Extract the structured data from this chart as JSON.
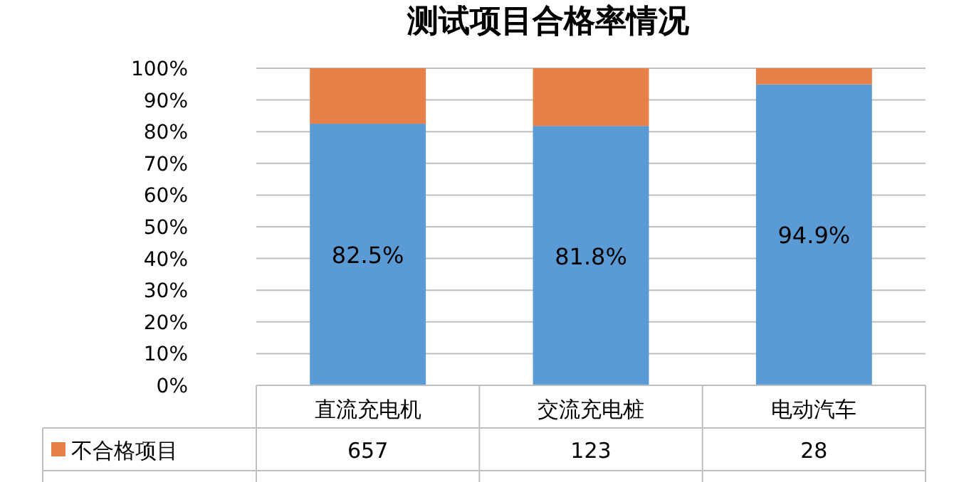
{
  "chart_data": {
    "type": "bar",
    "stacked": true,
    "title": "测试项目合格率情况",
    "categories": [
      "直流充电机",
      "交流充电桩",
      "电动汽车"
    ],
    "ylim": [
      0,
      100
    ],
    "yticks": [
      {
        "value": 0,
        "label": "0%"
      },
      {
        "value": 10,
        "label": "10%"
      },
      {
        "value": 20,
        "label": "20%"
      },
      {
        "value": 30,
        "label": "30%"
      },
      {
        "value": 40,
        "label": "40%"
      },
      {
        "value": 50,
        "label": "50%"
      },
      {
        "value": 60,
        "label": "60%"
      },
      {
        "value": 70,
        "label": "70%"
      },
      {
        "value": 80,
        "label": "80%"
      },
      {
        "value": 90,
        "label": "90%"
      },
      {
        "value": 100,
        "label": "100%"
      }
    ],
    "grid": "y",
    "series": [
      {
        "color": "#5b9bd5",
        "values": [
          82.5,
          81.8,
          94.9
        ],
        "value_labels": [
          "82.5%",
          "81.8%",
          "94.9%"
        ]
      },
      {
        "name": "不合格项目",
        "color": "#e8804a",
        "values": [
          17.5,
          18.2,
          5.1
        ]
      }
    ],
    "annotations": [
      "657",
      "123",
      "28"
    ]
  }
}
